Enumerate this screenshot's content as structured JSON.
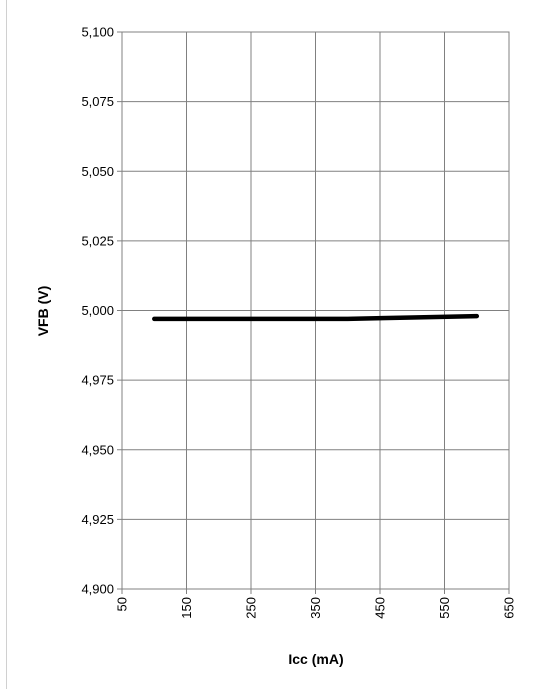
{
  "chart_data": {
    "type": "line",
    "title": "",
    "xlabel": "Icc (mA)",
    "ylabel": "VFB (V)",
    "xlim": [
      50,
      650
    ],
    "ylim": [
      4.9,
      5.1
    ],
    "x_ticks": [
      50,
      150,
      250,
      350,
      450,
      550,
      650
    ],
    "x_tick_labels": [
      "50",
      "150",
      "250",
      "350",
      "450",
      "550",
      "650"
    ],
    "y_ticks": [
      4.9,
      4.925,
      4.95,
      4.975,
      5.0,
      5.025,
      5.05,
      5.075,
      5.1
    ],
    "y_tick_labels": [
      "4,900",
      "4,925",
      "4,950",
      "4,975",
      "5,000",
      "5,025",
      "5,050",
      "5,075",
      "5,100"
    ],
    "grid": true,
    "series": [
      {
        "x": [
          100,
          200,
          300,
          400,
          500,
          600
        ],
        "y": [
          4.997,
          4.997,
          4.997,
          4.997,
          4.9975,
          4.998
        ],
        "color": "#000000"
      }
    ]
  }
}
